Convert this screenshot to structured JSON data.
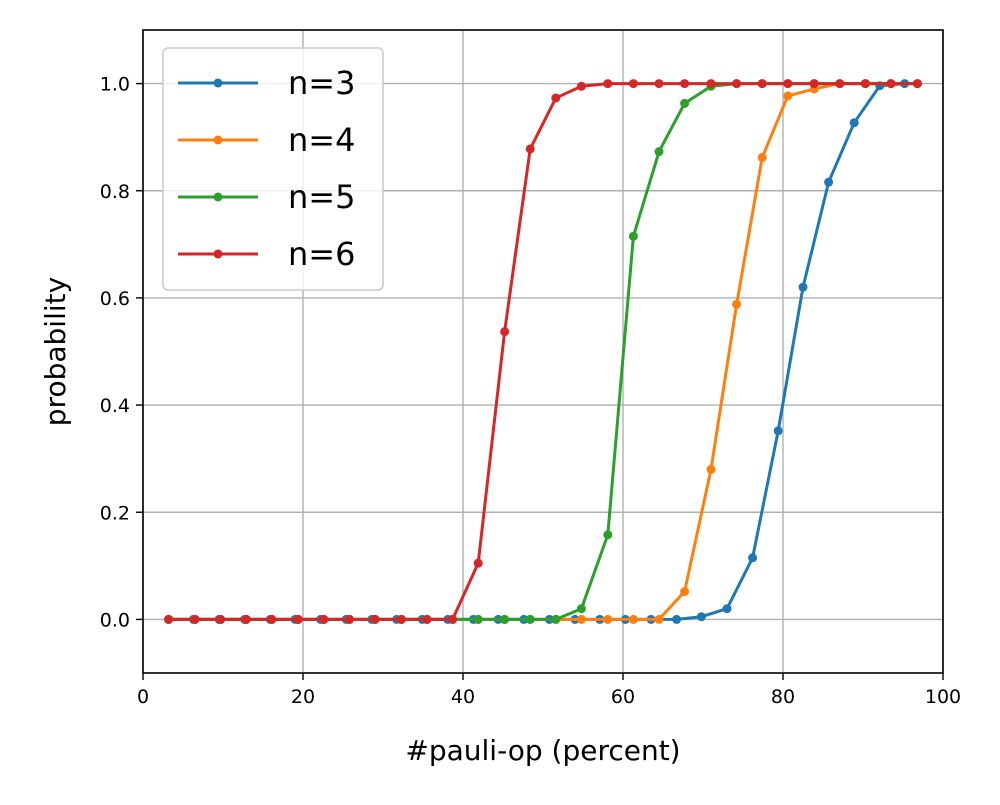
{
  "chart_data": {
    "type": "line",
    "title": "",
    "xlabel": "#pauli-op (percent)",
    "ylabel": "probability",
    "xlim": [
      0,
      100
    ],
    "ylim": [
      -0.1,
      1.1
    ],
    "xticks": [
      0,
      20,
      40,
      60,
      80,
      100
    ],
    "xtick_labels": [
      "0",
      "20",
      "40",
      "60",
      "80",
      "100"
    ],
    "yticks": [
      0.0,
      0.2,
      0.4,
      0.6,
      0.8,
      1.0
    ],
    "ytick_labels": [
      "0.0",
      "0.2",
      "0.4",
      "0.6",
      "0.8",
      "1.0"
    ],
    "grid": true,
    "legend_position": "upper-left",
    "series": [
      {
        "name": "n=3",
        "color": "#1f77b4",
        "x": [
          3.2,
          6.3,
          9.5,
          12.7,
          15.9,
          19.0,
          22.2,
          25.4,
          28.6,
          31.7,
          34.9,
          38.1,
          41.3,
          44.4,
          47.6,
          50.8,
          54.0,
          57.1,
          60.3,
          63.5,
          66.7,
          69.8,
          73.0,
          76.2,
          79.4,
          82.5,
          85.7,
          88.9,
          92.1,
          95.2
        ],
        "y": [
          0,
          0,
          0,
          0,
          0,
          0,
          0,
          0,
          0,
          0,
          0,
          0,
          0,
          0,
          0,
          0,
          0,
          0,
          0,
          0,
          0,
          0.005,
          0.02,
          0.115,
          0.352,
          0.62,
          0.816,
          0.927,
          0.996,
          1.0
        ]
      },
      {
        "name": "n=4",
        "color": "#ff7f0e",
        "x": [
          3.2,
          6.5,
          9.7,
          12.9,
          16.1,
          19.4,
          22.6,
          25.8,
          29.0,
          32.3,
          35.5,
          38.7,
          41.9,
          45.2,
          48.4,
          51.6,
          54.8,
          58.1,
          61.3,
          64.5,
          67.7,
          71.0,
          74.2,
          77.4,
          80.6,
          83.9,
          87.1,
          90.3,
          93.5,
          96.8
        ],
        "y": [
          0,
          0,
          0,
          0,
          0,
          0,
          0,
          0,
          0,
          0,
          0,
          0,
          0,
          0,
          0,
          0,
          0,
          0,
          0,
          0,
          0.052,
          0.28,
          0.588,
          0.862,
          0.977,
          0.99,
          1.0,
          1.0,
          1.0,
          1.0
        ]
      },
      {
        "name": "n=5",
        "color": "#2ca02c",
        "x": [
          3.2,
          6.5,
          9.7,
          12.9,
          16.1,
          19.4,
          22.6,
          25.8,
          29.0,
          32.3,
          35.5,
          38.7,
          41.9,
          45.2,
          48.4,
          51.6,
          54.8,
          58.1,
          61.3,
          64.5,
          67.7,
          71.0,
          74.2,
          77.4,
          80.6,
          83.9,
          87.1,
          90.3,
          93.5,
          96.8
        ],
        "y": [
          0,
          0,
          0,
          0,
          0,
          0,
          0,
          0,
          0,
          0,
          0,
          0,
          0,
          0,
          0,
          0,
          0.02,
          0.158,
          0.715,
          0.873,
          0.963,
          0.995,
          1.0,
          1.0,
          1.0,
          1.0,
          1.0,
          1.0,
          1.0,
          1.0
        ]
      },
      {
        "name": "n=6",
        "color": "#d62728",
        "x": [
          3.2,
          6.5,
          9.7,
          12.9,
          16.1,
          19.4,
          22.6,
          25.8,
          29.0,
          32.3,
          35.5,
          38.7,
          41.9,
          45.2,
          48.4,
          51.6,
          54.8,
          58.1,
          61.3,
          64.5,
          67.7,
          71.0,
          74.2,
          77.4,
          80.6,
          83.9,
          87.1,
          90.3,
          93.5,
          96.8
        ],
        "y": [
          0,
          0,
          0,
          0,
          0,
          0,
          0,
          0,
          0,
          0,
          0,
          0,
          0.105,
          0.537,
          0.878,
          0.973,
          0.995,
          1.0,
          1.0,
          1.0,
          1.0,
          1.0,
          1.0,
          1.0,
          1.0,
          1.0,
          1.0,
          1.0,
          1.0,
          1.0
        ]
      }
    ]
  }
}
